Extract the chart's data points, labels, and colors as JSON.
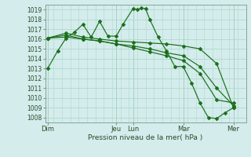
{
  "background_color": "#d4ecec",
  "grid_color": "#b0d8cc",
  "line_color": "#1a6e1a",
  "marker_color": "#1a6e1a",
  "xlabel_text": "Pression niveau de la mer( hPa )",
  "ylim": [
    1007.5,
    1019.5
  ],
  "yticks": [
    1008,
    1009,
    1010,
    1011,
    1012,
    1013,
    1014,
    1015,
    1016,
    1017,
    1018,
    1019
  ],
  "xlim": [
    0,
    24
  ],
  "x_day_labels": [
    "Dim",
    "Jeu",
    "Lun",
    "Mar",
    "Mer"
  ],
  "x_day_positions": [
    0.3,
    8.5,
    10.5,
    16.5,
    22.5
  ],
  "x_vline_positions": [
    0.3,
    8.5,
    10.5,
    16.5,
    22.5
  ],
  "series": [
    {
      "x": [
        0.3,
        1.5,
        2.5,
        3.5,
        4.5,
        5.5,
        6.5,
        7.5,
        8.5,
        9.3,
        10.5,
        11.0,
        11.5,
        12.0,
        12.5,
        13.5,
        14.5,
        15.5,
        16.5,
        17.5,
        18.5,
        19.5,
        20.5,
        21.5,
        22.5
      ],
      "y": [
        1013.0,
        1014.8,
        1016.1,
        1016.7,
        1017.5,
        1016.2,
        1017.8,
        1016.3,
        1016.3,
        1017.5,
        1019.1,
        1019.0,
        1019.15,
        1019.1,
        1018.0,
        1016.2,
        1014.8,
        1013.2,
        1013.2,
        1011.5,
        1009.5,
        1008.0,
        1007.9,
        1008.5,
        1009.0
      ]
    },
    {
      "x": [
        0.3,
        2.5,
        4.5,
        6.5,
        8.5,
        10.5,
        12.5,
        14.5,
        16.5,
        18.5,
        20.5,
        22.5
      ],
      "y": [
        1016.1,
        1016.6,
        1016.2,
        1016.0,
        1015.8,
        1015.7,
        1015.6,
        1015.5,
        1015.3,
        1015.0,
        1013.5,
        1009.0
      ]
    },
    {
      "x": [
        0.3,
        2.5,
        4.5,
        6.5,
        8.5,
        10.5,
        12.5,
        14.5,
        16.5,
        18.5,
        20.5,
        22.5
      ],
      "y": [
        1016.1,
        1016.4,
        1016.0,
        1015.8,
        1015.5,
        1015.3,
        1015.0,
        1014.6,
        1014.3,
        1013.2,
        1011.0,
        1009.2
      ]
    },
    {
      "x": [
        0.3,
        2.5,
        4.5,
        6.5,
        8.5,
        10.5,
        12.5,
        14.5,
        16.5,
        18.5,
        20.5,
        22.5
      ],
      "y": [
        1016.1,
        1016.2,
        1016.0,
        1015.8,
        1015.5,
        1015.1,
        1014.7,
        1014.3,
        1013.8,
        1012.5,
        1009.8,
        1009.5
      ]
    }
  ]
}
